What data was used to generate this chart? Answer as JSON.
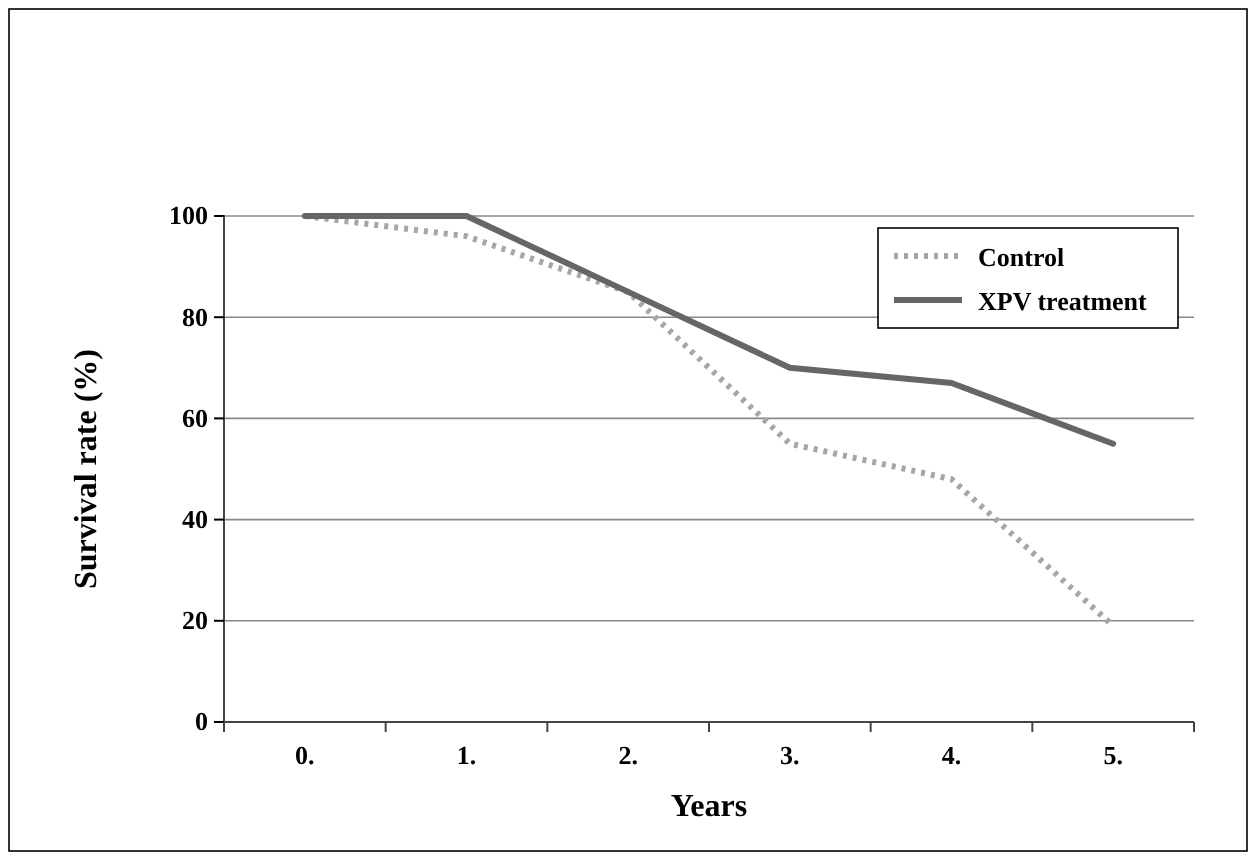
{
  "chart_data": {
    "type": "line",
    "xlabel": "Years",
    "ylabel": "Survival rate (%)",
    "categories": [
      "0.",
      "1.",
      "2.",
      "3.",
      "4.",
      "5."
    ],
    "series": [
      {
        "name": "Control",
        "color": "#a6a6a6",
        "line_style": "dotted",
        "values": [
          100,
          96,
          85,
          55,
          48,
          19
        ]
      },
      {
        "name": "XPV treatment",
        "color": "#666666",
        "line_style": "solid",
        "values": [
          100,
          100,
          85,
          70,
          67,
          55
        ]
      }
    ],
    "ylim": [
      0,
      100
    ],
    "yticks": [
      0,
      20,
      40,
      60,
      80,
      100
    ],
    "grid": "y",
    "legend": "top right",
    "marker": "none"
  }
}
